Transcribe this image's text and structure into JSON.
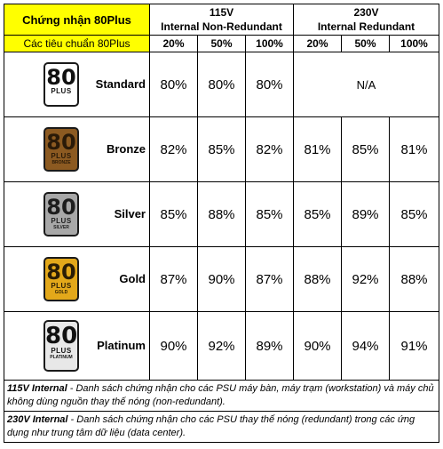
{
  "header": {
    "title": "Chứng nhận 80Plus",
    "subtitle": "Các tiêu chuẩn 80Plus",
    "groups": [
      {
        "line1": "115V",
        "line2": "Internal Non-Redundant"
      },
      {
        "line1": "230V",
        "line2": "Internal Redundant"
      }
    ],
    "percent_headers": [
      "20%",
      "50%",
      "100%",
      "20%",
      "50%",
      "100%"
    ]
  },
  "rows": [
    {
      "name": "Standard",
      "badge_label": "80 PLUS",
      "badge_tier": "",
      "badge_colors": {
        "bg": "#ffffff",
        "fg": "#111111"
      },
      "v115": [
        "80%",
        "80%",
        "80%"
      ],
      "v230_na": "N/A"
    },
    {
      "name": "Bronze",
      "badge_label": "80 PLUS",
      "badge_tier": "BRONZE",
      "badge_colors": {
        "bg": "#8c5a21",
        "fg": "#2a1a08"
      },
      "v115": [
        "82%",
        "85%",
        "82%"
      ],
      "v230": [
        "81%",
        "85%",
        "81%"
      ]
    },
    {
      "name": "Silver",
      "badge_label": "80 PLUS",
      "badge_tier": "SILVER",
      "badge_colors": {
        "bg": "#a8a8a8",
        "fg": "#1d1d1d"
      },
      "v115": [
        "85%",
        "88%",
        "85%"
      ],
      "v230": [
        "85%",
        "89%",
        "85%"
      ]
    },
    {
      "name": "Gold",
      "badge_label": "80 PLUS",
      "badge_tier": "GOLD",
      "badge_colors": {
        "bg": "#e3a81a",
        "fg": "#2a1d05"
      },
      "v115": [
        "87%",
        "90%",
        "87%"
      ],
      "v230": [
        "88%",
        "92%",
        "88%"
      ]
    },
    {
      "name": "Platinum",
      "badge_label": "80 PLUS",
      "badge_tier": "PLATINUM",
      "badge_colors": {
        "bg": "#e8e8e8",
        "fg": "#111111"
      },
      "v115": [
        "90%",
        "92%",
        "89%"
      ],
      "v230": [
        "90%",
        "94%",
        "91%"
      ]
    }
  ],
  "notes": [
    {
      "label": "115V Internal",
      "text": " - Danh sách chứng nhận cho các PSU máy bàn, máy trạm (workstation) và máy chủ không dùng nguồn thay thế nóng (non-redundant)."
    },
    {
      "label": "230V Internal",
      "text": " - Danh sách chứng nhận cho các PSU thay thế nóng (redundant) trong các ứng dụng như trung tâm dữ liệu (data center)."
    }
  ],
  "colors": {
    "header_highlight": "#ffff00"
  }
}
